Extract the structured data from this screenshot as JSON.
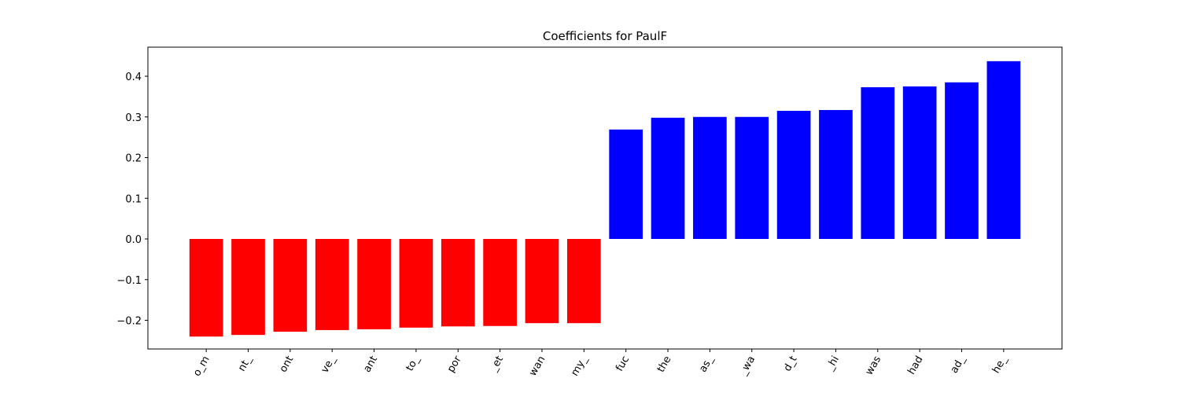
{
  "chart_data": {
    "type": "bar",
    "title": "Coefficients for PaulF",
    "categories": [
      "o_m",
      "nt_",
      "ont",
      "ve_",
      "ant",
      "to_",
      "por",
      "_et",
      "wan",
      "my_",
      "fuc",
      "the",
      "as_",
      "_wa",
      "d_t",
      "_hi",
      "was",
      "had",
      "ad_",
      "he_"
    ],
    "values": [
      -0.24,
      -0.236,
      -0.228,
      -0.224,
      -0.222,
      -0.218,
      -0.215,
      -0.214,
      -0.207,
      -0.207,
      0.269,
      0.298,
      0.3,
      0.3,
      0.315,
      0.317,
      0.373,
      0.375,
      0.385,
      0.437
    ],
    "colors": [
      "red",
      "red",
      "red",
      "red",
      "red",
      "red",
      "red",
      "red",
      "red",
      "red",
      "blue",
      "blue",
      "blue",
      "blue",
      "blue",
      "blue",
      "blue",
      "blue",
      "blue",
      "blue"
    ],
    "ylim": [
      -0.2705,
      0.4715
    ],
    "yticks": [
      {
        "value": -0.2,
        "label": "−0.2"
      },
      {
        "value": -0.1,
        "label": "−0.1"
      },
      {
        "value": 0.0,
        "label": "0.0"
      },
      0.1,
      0.2,
      0.3,
      0.4
    ],
    "grid": false
  }
}
